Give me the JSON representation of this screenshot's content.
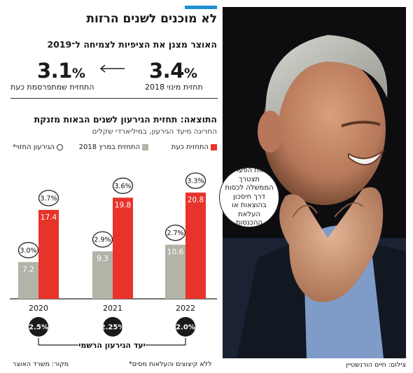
{
  "header": {
    "title": "לא מוכנים לשנים הרזות",
    "subtitle": "האוצר מצנן את הציפיות לצמיחה ל־2019"
  },
  "growth_forecast": {
    "previous": {
      "value": "3.4",
      "unit": "%",
      "caption": "תחזית מינוי 2018"
    },
    "current": {
      "value": "3.1",
      "unit": "%",
      "caption": "התחזית שמתפרסמת כעת"
    }
  },
  "chart_data": {
    "type": "bar",
    "title": "התוצאה: תחזית הגירעון לשנים הבאות מזנקת",
    "subtitle": "החריגה מיעד הגירעון, במיליארדי שקלים",
    "categories": [
      "2020",
      "2021",
      "2022"
    ],
    "series": [
      {
        "name": "התחזית במרץ 2018",
        "color": "#b3b3a8",
        "values": [
          7.2,
          9.3,
          10.6
        ],
        "labels": [
          "7.2",
          "9.3",
          "10.6"
        ],
        "pct": [
          "3.0%",
          "2.9%",
          "2.7%"
        ]
      },
      {
        "name": "התחזית כעת",
        "color": "#e8332a",
        "values": [
          17.4,
          19.8,
          20.8
        ],
        "labels": [
          "17.4",
          "19.8",
          "20.8"
        ],
        "pct": [
          "3.7%",
          "3.6%",
          "3.3%"
        ]
      }
    ],
    "ring_legend": "הגירעון החזוי*",
    "official_target": {
      "label": "יעד הגירעון הרשמי",
      "values": [
        "2.5%",
        "2.25%",
        "2.0%"
      ]
    },
    "ylim": [
      0,
      24
    ],
    "grid": false,
    "legend_position": "top"
  },
  "footer": {
    "note": "*ללא קיצוצים והעלאות מסים",
    "source": "מקור: משרד האוצר"
  },
  "photo": {
    "credit": "צילום: חיים הורנשטיין",
    "quote": "את הפער תצטרך הממשלה לכסות דרך חיסכון בהוצאות או העלאת ההכנסות"
  }
}
